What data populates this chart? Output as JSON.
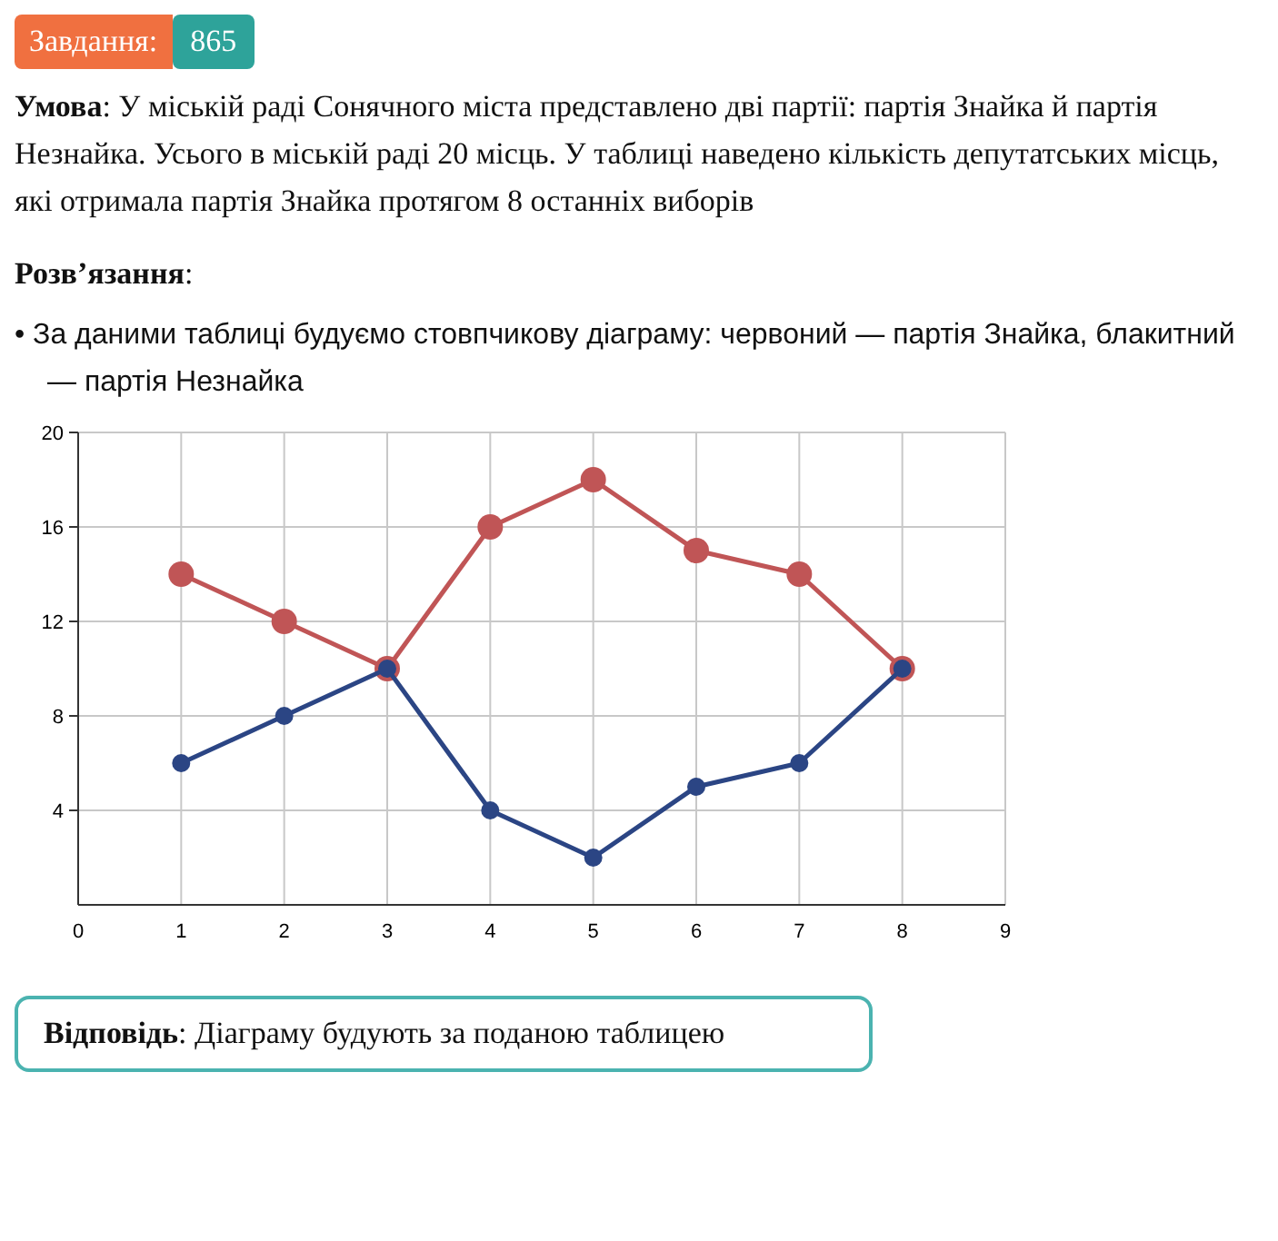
{
  "chart_data": {
    "type": "line",
    "title": "Завдання:",
    "subtitle": "865",
    "annotations": [
      "Умова: У міській раді Сонячного міста представлено дві партії: партія Знайка й партія Незнайка. Усього в міській раді 20 місць. У таблиці наведено кількість депутатських місць, які отримала партія Знайка протягом 8 останніх виборів",
      "Розв’язання:",
      "• За даними таблиці будуємо стовпчикову діаграму: червоний — партія Знайка, блакитний — партія Незнайка",
      "Відповідь: Діаграму будують за поданою таблицею"
    ],
    "x": [
      1,
      2,
      3,
      4,
      5,
      6,
      7,
      8
    ],
    "series": [
      {
        "color": "#c05556",
        "values": [
          14,
          12,
          10,
          16,
          18,
          15,
          14,
          10
        ]
      },
      {
        "color": "#2b4584",
        "values": [
          6,
          8,
          10,
          4,
          2,
          5,
          6,
          10
        ]
      }
    ],
    "xlim": [
      0,
      9
    ],
    "xticks": [
      0,
      1,
      2,
      3,
      4,
      5,
      6,
      7,
      8,
      9
    ],
    "ylim": [
      0,
      20
    ],
    "yticks": [
      4,
      8,
      12,
      16,
      20
    ],
    "grid": true,
    "marker": "circle",
    "line_style": "solid"
  }
}
